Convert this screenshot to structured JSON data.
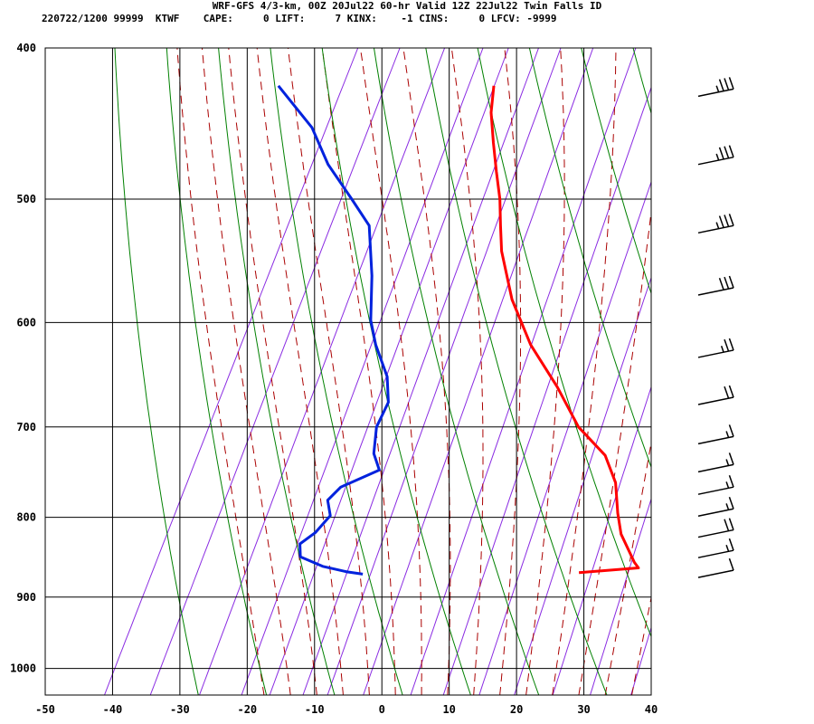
{
  "header": {
    "line1": "WRF-GFS 4/3-km, 00Z 20Jul22 60-hr Valid 12Z 22Jul22 Twin Falls ID",
    "line2": "220722/1200 99999  KTWF    CAPE:     0 LIFT:     7 KINX:    -1 CINS:     0 LFCV: -9999"
  },
  "colors": {
    "temperature": "#ff0000",
    "dewpoint": "#0022dd",
    "isotherm": "#000000",
    "dry_adiabat": "#008000",
    "moist_adiabat": "#aa0000",
    "mixing_ratio": "#8a2be2",
    "wind_barb": "#000000"
  },
  "chart_data": {
    "type": "line",
    "subtype": "skew-T log-P sounding",
    "xlim": [
      -50,
      40
    ],
    "ylim": [
      1040,
      400
    ],
    "y_scale": "log",
    "x_ticks": [
      "-50",
      "-40",
      "-30",
      "-20",
      "-10",
      "0",
      "10",
      "20",
      "30",
      "40"
    ],
    "y_ticks": [
      "400",
      "500",
      "600",
      "700",
      "800",
      "900",
      "1000"
    ],
    "grid": true,
    "series": [
      {
        "key": "temperature",
        "points": [
          [
            868,
            20.5
          ],
          [
            862,
            29
          ],
          [
            855,
            28
          ],
          [
            820,
            24
          ],
          [
            795,
            22
          ],
          [
            760,
            19.5
          ],
          [
            730,
            16
          ],
          [
            700,
            10
          ],
          [
            660,
            4
          ],
          [
            620,
            -3
          ],
          [
            580,
            -9
          ],
          [
            540,
            -14
          ],
          [
            520,
            -16
          ],
          [
            500,
            -18
          ],
          [
            480,
            -20.5
          ],
          [
            460,
            -23
          ],
          [
            440,
            -25.5
          ],
          [
            423,
            -27
          ]
        ]
      },
      {
        "key": "dewpoint",
        "points": [
          [
            870,
            -11.5
          ],
          [
            867,
            -14
          ],
          [
            860,
            -18
          ],
          [
            848,
            -22
          ],
          [
            832,
            -23
          ],
          [
            818,
            -21.5
          ],
          [
            798,
            -20.5
          ],
          [
            780,
            -22
          ],
          [
            765,
            -21
          ],
          [
            746,
            -16.5
          ],
          [
            728,
            -18.5
          ],
          [
            700,
            -20
          ],
          [
            675,
            -20
          ],
          [
            650,
            -22
          ],
          [
            620,
            -26
          ],
          [
            598,
            -28.5
          ],
          [
            560,
            -31.5
          ],
          [
            520,
            -35.5
          ],
          [
            500,
            -40
          ],
          [
            475,
            -46
          ],
          [
            450,
            -51
          ],
          [
            423,
            -59
          ]
        ]
      }
    ],
    "wind_barbs": [
      {
        "p": 425,
        "speed_kt": 35
      },
      {
        "p": 470,
        "speed_kt": 35
      },
      {
        "p": 520,
        "speed_kt": 35
      },
      {
        "p": 570,
        "speed_kt": 30
      },
      {
        "p": 625,
        "speed_kt": 25
      },
      {
        "p": 670,
        "speed_kt": 20
      },
      {
        "p": 710,
        "speed_kt": 15
      },
      {
        "p": 740,
        "speed_kt": 15
      },
      {
        "p": 765,
        "speed_kt": 15
      },
      {
        "p": 790,
        "speed_kt": 15
      },
      {
        "p": 815,
        "speed_kt": 20
      },
      {
        "p": 840,
        "speed_kt": 15
      },
      {
        "p": 865,
        "speed_kt": 10
      }
    ]
  }
}
